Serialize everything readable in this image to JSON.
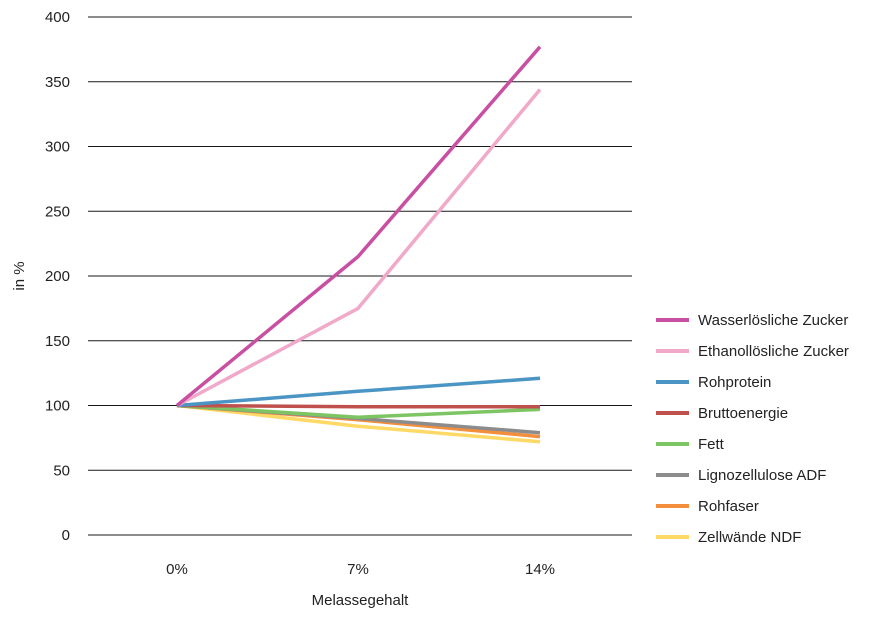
{
  "chart_data": {
    "type": "line",
    "title": "",
    "xlabel": "Melassegehalt",
    "ylabel": "in %",
    "categories": [
      "0%",
      "7%",
      "14%"
    ],
    "ylim": [
      0,
      400
    ],
    "yticks": [
      0,
      50,
      100,
      150,
      200,
      250,
      300,
      350,
      400
    ],
    "grid": true,
    "legend_position": "right",
    "series": [
      {
        "name": "Wasserlösliche Zucker",
        "color": "#c94fa2",
        "values": [
          100,
          215,
          377
        ]
      },
      {
        "name": "Ethanollösliche Zucker",
        "color": "#f0a9c9",
        "values": [
          100,
          175,
          344
        ]
      },
      {
        "name": "Rohprotein",
        "color": "#4a95c4",
        "values": [
          100,
          111,
          121
        ]
      },
      {
        "name": "Bruttoenergie",
        "color": "#c0504d",
        "values": [
          100,
          99,
          99
        ]
      },
      {
        "name": "Fett",
        "color": "#7dc462",
        "values": [
          100,
          91,
          97
        ]
      },
      {
        "name": "Lignozellulose ADF",
        "color": "#8c8c8c",
        "values": [
          100,
          90,
          79
        ]
      },
      {
        "name": "Rohfaser",
        "color": "#f28e3c",
        "values": [
          100,
          89,
          76
        ]
      },
      {
        "name": "Zellwände NDF",
        "color": "#ffd966",
        "values": [
          100,
          84,
          72
        ]
      }
    ]
  }
}
